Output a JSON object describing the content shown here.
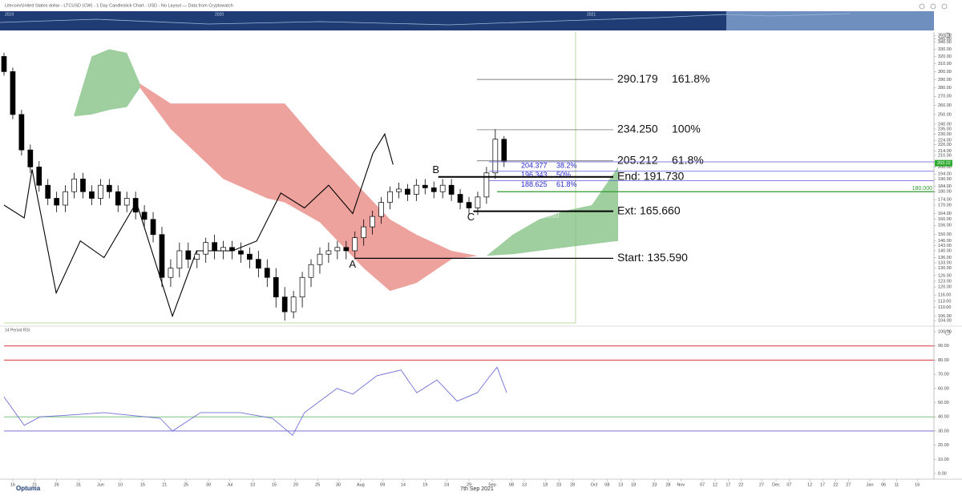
{
  "header": {
    "title": "Litecoin/United States dollar - LTCUSD (CW) - 1 Day Candlestick Chart - USD - No Layout — Data from Cryptowatch",
    "years": [
      "2019",
      "2020",
      "2021"
    ],
    "brand": "Optuma",
    "date": "7th Sep 2021"
  },
  "chart_data": [
    {
      "type": "candlestick",
      "log_scale": true,
      "ylim": [
        103,
        355
      ],
      "xlim": [
        -2,
        210
      ],
      "up_color": "#ffffff",
      "down_color": "#000000",
      "x": [
        -2,
        0,
        2,
        4,
        6,
        8,
        10,
        12,
        14,
        16,
        18,
        20,
        22,
        24,
        26,
        28,
        30,
        32,
        34,
        36,
        38,
        40,
        42,
        44,
        46,
        48,
        50,
        52,
        54,
        56,
        58,
        60,
        62,
        64,
        66,
        68,
        70,
        72,
        74,
        76,
        78,
        80,
        82,
        84,
        86,
        88,
        90,
        92,
        94,
        96,
        98,
        100,
        102,
        104,
        106,
        108,
        110,
        112
      ],
      "open": [
        320,
        300,
        250,
        215,
        200,
        185,
        175,
        170,
        180,
        190,
        180,
        175,
        185,
        180,
        170,
        175,
        165,
        160,
        150,
        125,
        130,
        140,
        135,
        138,
        145,
        140,
        142,
        140,
        138,
        135,
        130,
        125,
        115,
        108,
        115,
        125,
        132,
        138,
        140,
        142,
        140,
        148,
        155,
        162,
        172,
        180,
        182,
        178,
        185,
        183,
        180,
        185,
        178,
        172,
        168,
        176,
        195,
        225
      ],
      "high": [
        325,
        305,
        255,
        220,
        205,
        190,
        180,
        185,
        195,
        195,
        185,
        190,
        190,
        185,
        180,
        180,
        170,
        165,
        155,
        135,
        145,
        145,
        140,
        148,
        150,
        146,
        146,
        145,
        142,
        140,
        135,
        130,
        120,
        118,
        128,
        135,
        142,
        145,
        146,
        146,
        152,
        160,
        166,
        176,
        184,
        187,
        186,
        190,
        190,
        188,
        190,
        190,
        182,
        176,
        180,
        200,
        235,
        228
      ],
      "low": [
        295,
        245,
        210,
        195,
        180,
        170,
        165,
        165,
        175,
        175,
        170,
        170,
        175,
        165,
        165,
        160,
        155,
        145,
        120,
        120,
        125,
        130,
        130,
        133,
        135,
        135,
        135,
        133,
        130,
        125,
        120,
        110,
        104,
        105,
        110,
        120,
        127,
        133,
        135,
        135,
        135,
        143,
        150,
        157,
        167,
        175,
        173,
        173,
        178,
        175,
        175,
        173,
        167,
        163,
        163,
        171,
        190,
        200
      ],
      "close": [
        300,
        250,
        215,
        200,
        185,
        175,
        170,
        180,
        190,
        180,
        175,
        185,
        180,
        170,
        175,
        165,
        160,
        150,
        125,
        130,
        140,
        135,
        138,
        145,
        140,
        142,
        140,
        138,
        135,
        130,
        125,
        115,
        108,
        115,
        125,
        132,
        138,
        140,
        142,
        140,
        148,
        155,
        162,
        172,
        180,
        182,
        178,
        185,
        183,
        180,
        185,
        178,
        172,
        168,
        176,
        195,
        225,
        205
      ],
      "comparison": {
        "color": "#000000",
        "x": [
          -2,
          2.6,
          4.4,
          9.9,
          15.4,
          20.8,
          28.2,
          36.4,
          41.9,
          50.1,
          55.6,
          61.1,
          66.5,
          72,
          77.5,
          82.1,
          84.8,
          86.7
        ],
        "values": [
          170,
          161,
          198,
          117,
          146,
          136,
          172,
          106,
          140,
          140,
          146,
          179,
          168,
          185,
          164,
          212,
          230,
          202
        ]
      },
      "clouds": [
        {
          "color": "#7fbf7f",
          "x": [
            14,
            18,
            22,
            26,
            29
          ],
          "upper": [
            250,
            320,
            330,
            325,
            285
          ],
          "lower": [
            248,
            250,
            255,
            258,
            280
          ]
        },
        {
          "color": "#e8837c",
          "x": [
            29,
            36,
            48,
            58,
            62,
            70,
            80,
            86,
            92,
            100,
            106
          ],
          "upper": [
            285,
            262,
            262,
            262,
            262,
            220,
            180,
            160,
            150,
            140,
            137
          ],
          "lower": [
            280,
            235,
            190,
            175,
            172,
            158,
            130,
            118,
            122,
            135,
            137
          ]
        },
        {
          "color": "#7fbf7f",
          "x": [
            108,
            114,
            120,
            126,
            132,
            138
          ],
          "upper": [
            137,
            150,
            160,
            166,
            170,
            200
          ],
          "lower": [
            137,
            138,
            140,
            142,
            144,
            146
          ]
        }
      ],
      "fib_levels": [
        {
          "value": 290.179,
          "label": "290.179",
          "ratio": "161.8%"
        },
        {
          "value": 234.25,
          "label": "234.250",
          "ratio": "100%"
        },
        {
          "value": 205.212,
          "label": "205.212",
          "ratio": "61.8%"
        }
      ],
      "retracements": [
        {
          "value": 204.377,
          "label": "204.377",
          "ratio": "38.2%"
        },
        {
          "value": 196.343,
          "label": "196.343",
          "ratio": "50%"
        },
        {
          "value": 188.625,
          "label": "188.625",
          "ratio": "61.8%"
        }
      ],
      "abc": [
        {
          "value": 135.59,
          "label": "Start: 135.590",
          "point": "A",
          "x": 78
        },
        {
          "value": 191.73,
          "label": "End: 191.730",
          "point": "B",
          "x": 97
        },
        {
          "value": 165.66,
          "label": "Ext: 165.660",
          "point": "C",
          "x": 105
        }
      ],
      "faded_label": "d:   165.660",
      "hline": {
        "value": 180,
        "label": "180.000",
        "color": "#2e9a2e"
      },
      "last_price": {
        "value": 203.22,
        "label": "203.22"
      },
      "yticks": [
        {
          "value": 350,
          "label": "350.00"
        },
        {
          "value": 345,
          "label": "345.00"
        },
        {
          "value": 340,
          "label": "340.00"
        },
        {
          "value": 330,
          "label": "330.00"
        },
        {
          "value": 320,
          "label": "320.00"
        },
        {
          "value": 310,
          "label": "310.00"
        },
        {
          "value": 300,
          "label": "300.00"
        },
        {
          "value": 290,
          "label": "290.00"
        },
        {
          "value": 280,
          "label": "280.00"
        },
        {
          "value": 270,
          "label": "270.00"
        },
        {
          "value": 260,
          "label": "260.00"
        },
        {
          "value": 250,
          "label": "250.00"
        },
        {
          "value": 240,
          "label": "240.00"
        },
        {
          "value": 235,
          "label": "235.00"
        },
        {
          "value": 230,
          "label": "230.00"
        },
        {
          "value": 224,
          "label": "224.00"
        },
        {
          "value": 220,
          "label": "220.00"
        },
        {
          "value": 214,
          "label": "214.00"
        },
        {
          "value": 210,
          "label": "210.00"
        },
        {
          "value": 204,
          "label": "204.00"
        },
        {
          "value": 200,
          "label": "200.00"
        },
        {
          "value": 194,
          "label": "194.00"
        },
        {
          "value": 190,
          "label": "190.00"
        },
        {
          "value": 184,
          "label": "184.00"
        },
        {
          "value": 180,
          "label": "180.00"
        },
        {
          "value": 174,
          "label": "174.00"
        },
        {
          "value": 170,
          "label": "170.00"
        },
        {
          "value": 164,
          "label": "164.00"
        },
        {
          "value": 160,
          "label": "160.00"
        },
        {
          "value": 156,
          "label": "156.00"
        },
        {
          "value": 150,
          "label": "150.00"
        },
        {
          "value": 146,
          "label": "146.00"
        },
        {
          "value": 143,
          "label": "143.00"
        },
        {
          "value": 140,
          "label": "140.00"
        },
        {
          "value": 136,
          "label": "136.00"
        },
        {
          "value": 133,
          "label": "133.00"
        },
        {
          "value": 130,
          "label": "130.00"
        },
        {
          "value": 126,
          "label": "126.00"
        },
        {
          "value": 123,
          "label": "123.00"
        },
        {
          "value": 120,
          "label": "120.00"
        },
        {
          "value": 116,
          "label": "116.00"
        },
        {
          "value": 113,
          "label": "113.00"
        },
        {
          "value": 110,
          "label": "110.00"
        },
        {
          "value": 106,
          "label": "106.00"
        },
        {
          "value": 104,
          "label": "104.00"
        }
      ],
      "xticks": [
        {
          "value": 0,
          "label": "16"
        },
        {
          "value": 5,
          "label": "21"
        },
        {
          "value": 10,
          "label": "26"
        },
        {
          "value": 15,
          "label": "31"
        },
        {
          "value": 20,
          "label": "Jun"
        },
        {
          "value": 24.5,
          "label": "10"
        },
        {
          "value": 29.6,
          "label": "15"
        },
        {
          "value": 34.6,
          "label": "21"
        },
        {
          "value": 39.5,
          "label": "25"
        },
        {
          "value": 44.6,
          "label": "30"
        },
        {
          "value": 49.5,
          "label": "Jul"
        },
        {
          "value": 54.7,
          "label": "10"
        },
        {
          "value": 59.6,
          "label": "15"
        },
        {
          "value": 64.5,
          "label": "20"
        },
        {
          "value": 69.5,
          "label": "25"
        },
        {
          "value": 74.2,
          "label": "30"
        },
        {
          "value": 79.3,
          "label": "Aug"
        },
        {
          "value": 84.3,
          "label": "09"
        },
        {
          "value": 89,
          "label": "14"
        },
        {
          "value": 94,
          "label": "19"
        },
        {
          "value": 98.9,
          "label": "24"
        },
        {
          "value": 104,
          "label": "29"
        },
        {
          "value": 109.3,
          "label": "Sep"
        },
        {
          "value": 113.7,
          "label": "08"
        },
        {
          "value": 116.6,
          "label": "13"
        },
        {
          "value": 121.4,
          "label": "18"
        },
        {
          "value": 124.5,
          "label": "23"
        },
        {
          "value": 127.6,
          "label": "28"
        },
        {
          "value": 132.5,
          "label": "Oct"
        },
        {
          "value": 135.5,
          "label": "08"
        },
        {
          "value": 138.6,
          "label": "13"
        },
        {
          "value": 141.5,
          "label": "18"
        },
        {
          "value": 146.3,
          "label": "23"
        },
        {
          "value": 149.4,
          "label": "28"
        },
        {
          "value": 152.3,
          "label": "Nov"
        },
        {
          "value": 157.2,
          "label": "07"
        },
        {
          "value": 160.1,
          "label": "12"
        },
        {
          "value": 163.1,
          "label": "17"
        },
        {
          "value": 166,
          "label": "22"
        },
        {
          "value": 170.7,
          "label": "27"
        },
        {
          "value": 174,
          "label": "Dec"
        },
        {
          "value": 177,
          "label": "07"
        },
        {
          "value": 181.7,
          "label": "12"
        },
        {
          "value": 184.6,
          "label": "17"
        },
        {
          "value": 187.6,
          "label": "22"
        },
        {
          "value": 190.5,
          "label": "27"
        },
        {
          "value": 195.4,
          "label": "Jan"
        },
        {
          "value": 198.5,
          "label": "06"
        },
        {
          "value": 201.5,
          "label": "11"
        },
        {
          "value": 206.2,
          "label": "16"
        }
      ]
    },
    {
      "type": "line",
      "title": "14 Period RSI",
      "ylim": [
        0,
        100
      ],
      "xlim": [
        -2,
        210
      ],
      "color": "#6f6fd8",
      "x": [
        -2,
        2.6,
        6.2,
        11.7,
        20.8,
        33.6,
        36.4,
        42.8,
        51.9,
        59.2,
        63.8,
        66.5,
        73.9,
        77.5,
        83,
        88.5,
        92.1,
        96.7,
        101.3,
        105.9,
        108.6,
        110.4,
        112.6
      ],
      "values": [
        54,
        34,
        40,
        41,
        43,
        39,
        30,
        43,
        43,
        39,
        27,
        43,
        60,
        56,
        69,
        73,
        57,
        66,
        51,
        57,
        68,
        75,
        57
      ],
      "levels": [
        {
          "value": 90,
          "color": "#d9363e"
        },
        {
          "value": 80,
          "color": "#d9363e"
        },
        {
          "value": 40,
          "color": "#7cc07c"
        },
        {
          "value": 30,
          "color": "#7b6fd6"
        }
      ],
      "yticks": [
        {
          "value": 100,
          "label": "100.00"
        },
        {
          "value": 90,
          "label": "90.00"
        },
        {
          "value": 80,
          "label": "80.00"
        },
        {
          "value": 70,
          "label": "70.00"
        },
        {
          "value": 60,
          "label": "60.00"
        },
        {
          "value": 50,
          "label": "50.00"
        },
        {
          "value": 40,
          "label": "40.00"
        },
        {
          "value": 30,
          "label": "30.00"
        },
        {
          "value": 20,
          "label": "20.00"
        },
        {
          "value": 10,
          "label": "10.00"
        },
        {
          "value": 0,
          "label": "0.00"
        }
      ]
    }
  ]
}
